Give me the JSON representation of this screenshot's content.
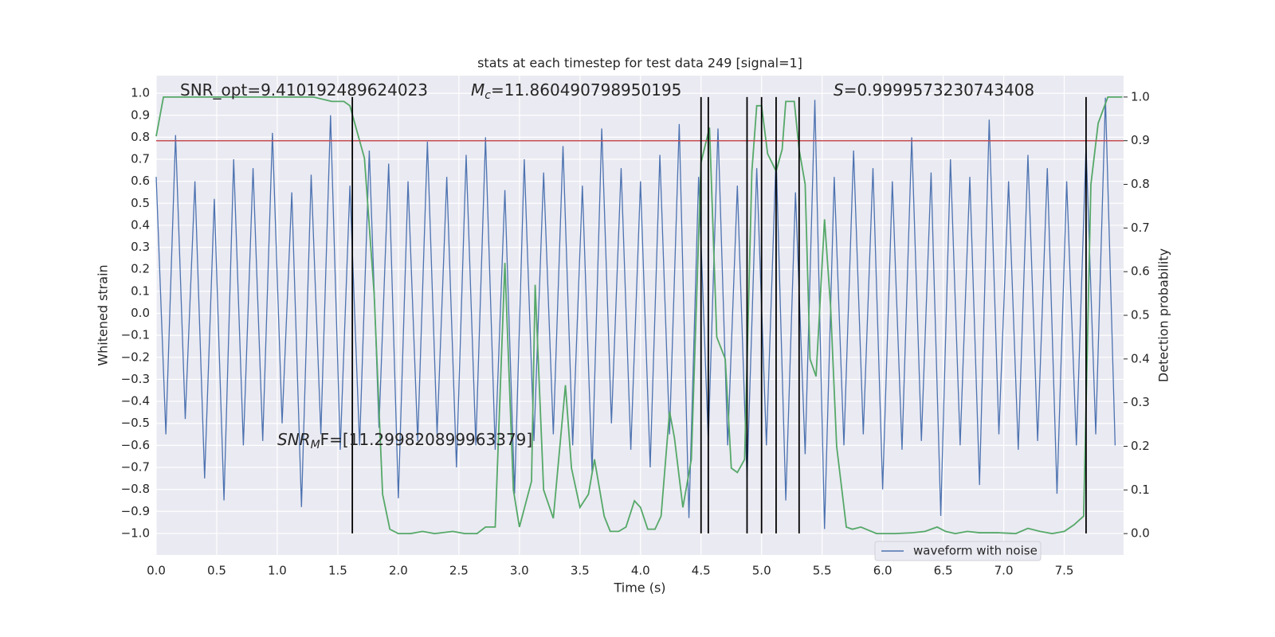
{
  "chart_data": {
    "type": "line",
    "title": "stats at each timestep for test data 249 [signal=1]",
    "xlabel": "Time (s)",
    "ylabel": "Whitened strain",
    "y2label": "Detection probability",
    "xlim": [
      0,
      7.99
    ],
    "xticks": [
      {
        "value": 0,
        "label": "0.0"
      },
      {
        "value": 0.5,
        "label": "0.5"
      },
      {
        "value": 1,
        "label": "1.0"
      },
      {
        "value": 1.5,
        "label": "1.5"
      },
      {
        "value": 2,
        "label": "2.0"
      },
      {
        "value": 2.5,
        "label": "2.5"
      },
      {
        "value": 3,
        "label": "3.0"
      },
      {
        "value": 3.5,
        "label": "3.5"
      },
      {
        "value": 4,
        "label": "4.0"
      },
      {
        "value": 4.5,
        "label": "4.5"
      },
      {
        "value": 5,
        "label": "5.0"
      },
      {
        "value": 5.5,
        "label": "5.5"
      },
      {
        "value": 6,
        "label": "6.0"
      },
      {
        "value": 6.5,
        "label": "6.5"
      },
      {
        "value": 7,
        "label": "7.0"
      },
      {
        "value": 7.5,
        "label": "7.5"
      }
    ],
    "ylim": [
      -1.098,
      1.08
    ],
    "yticks": [
      {
        "value": -1,
        "label": "−1.0"
      },
      {
        "value": -0.9,
        "label": "−0.9"
      },
      {
        "value": -0.8,
        "label": "−0.8"
      },
      {
        "value": -0.7,
        "label": "−0.7"
      },
      {
        "value": -0.6,
        "label": "−0.6"
      },
      {
        "value": -0.5,
        "label": "−0.5"
      },
      {
        "value": -0.4,
        "label": "−0.4"
      },
      {
        "value": -0.3,
        "label": "−0.3"
      },
      {
        "value": -0.2,
        "label": "−0.2"
      },
      {
        "value": -0.1,
        "label": "−0.1"
      },
      {
        "value": 0,
        "label": "0.0"
      },
      {
        "value": 0.1,
        "label": "0.1"
      },
      {
        "value": 0.2,
        "label": "0.2"
      },
      {
        "value": 0.3,
        "label": "0.3"
      },
      {
        "value": 0.4,
        "label": "0.4"
      },
      {
        "value": 0.5,
        "label": "0.5"
      },
      {
        "value": 0.6,
        "label": "0.6"
      },
      {
        "value": 0.7,
        "label": "0.7"
      },
      {
        "value": 0.8,
        "label": "0.8"
      },
      {
        "value": 0.9,
        "label": "0.9"
      },
      {
        "value": 1,
        "label": "1.0"
      }
    ],
    "y2lim": [
      -0.049,
      1.049
    ],
    "y2ticks": [
      {
        "value": 0,
        "label": "0.0"
      },
      {
        "value": 0.1,
        "label": "0.1"
      },
      {
        "value": 0.2,
        "label": "0.2"
      },
      {
        "value": 0.3,
        "label": "0.3"
      },
      {
        "value": 0.4,
        "label": "0.4"
      },
      {
        "value": 0.5,
        "label": "0.5"
      },
      {
        "value": 0.6,
        "label": "0.6"
      },
      {
        "value": 0.7,
        "label": "0.7"
      },
      {
        "value": 0.8,
        "label": "0.8"
      },
      {
        "value": 0.9,
        "label": "0.9"
      },
      {
        "value": 1,
        "label": "1.0"
      }
    ],
    "grid": true,
    "legend": "lower right",
    "series": [
      {
        "name": "waveform with noise",
        "color": "#4c72b0",
        "x": [
          0,
          0.08,
          0.16,
          0.24,
          0.32,
          0.4,
          0.48,
          0.56,
          0.64,
          0.72,
          0.8,
          0.88,
          0.96,
          1.04,
          1.12,
          1.2,
          1.28,
          1.36,
          1.44,
          1.52,
          1.6,
          1.68,
          1.76,
          1.84,
          1.92,
          2,
          2.08,
          2.16,
          2.24,
          2.32,
          2.4,
          2.48,
          2.56,
          2.64,
          2.72,
          2.8,
          2.88,
          2.96,
          3.04,
          3.12,
          3.2,
          3.28,
          3.36,
          3.44,
          3.52,
          3.6,
          3.68,
          3.76,
          3.84,
          3.92,
          4,
          4.08,
          4.16,
          4.24,
          4.32,
          4.4,
          4.48,
          4.56,
          4.64,
          4.72,
          4.8,
          4.88,
          4.96,
          5.04,
          5.12,
          5.2,
          5.28,
          5.36,
          5.44,
          5.52,
          5.6,
          5.68,
          5.76,
          5.84,
          5.92,
          6,
          6.08,
          6.16,
          6.24,
          6.32,
          6.4,
          6.48,
          6.56,
          6.64,
          6.72,
          6.8,
          6.88,
          6.96,
          7.04,
          7.12,
          7.2,
          7.28,
          7.36,
          7.44,
          7.52,
          7.6,
          7.68,
          7.76,
          7.84,
          7.92
        ],
        "values": [
          0.62,
          -0.55,
          0.81,
          -0.48,
          0.6,
          -0.75,
          0.52,
          -0.85,
          0.7,
          -0.6,
          0.66,
          -0.58,
          0.82,
          -0.5,
          0.55,
          -0.88,
          0.63,
          -0.55,
          0.9,
          -0.62,
          0.58,
          -0.6,
          0.74,
          -0.52,
          0.68,
          -0.84,
          0.6,
          -0.58,
          0.78,
          -0.55,
          0.62,
          -0.7,
          0.72,
          -0.6,
          0.8,
          -0.62,
          0.56,
          -0.82,
          0.7,
          -0.58,
          0.64,
          -0.55,
          0.76,
          -0.6,
          0.58,
          -0.72,
          0.84,
          -0.5,
          0.66,
          -0.62,
          0.6,
          -0.7,
          0.72,
          -0.55,
          0.86,
          -0.93,
          0.62,
          -0.58,
          0.84,
          -0.6,
          0.58,
          -0.75,
          0.66,
          -0.6,
          0.72,
          -0.85,
          0.55,
          -0.64,
          0.97,
          -0.98,
          0.62,
          -0.6,
          0.74,
          -0.55,
          0.66,
          -0.8,
          0.6,
          -0.62,
          0.8,
          -0.58,
          0.64,
          -0.92,
          0.7,
          -0.6,
          0.62,
          -0.78,
          0.88,
          -0.55,
          0.6,
          -0.62,
          0.72,
          -0.58,
          0.66,
          -0.82,
          0.6,
          -0.6,
          0.76,
          -0.55,
          0.98,
          -0.6
        ]
      },
      {
        "color": "#55a868",
        "axis": "y2",
        "x": [
          0,
          0.06,
          0.5,
          1.3,
          1.45,
          1.55,
          1.6,
          1.65,
          1.72,
          1.8,
          1.87,
          1.93,
          2,
          2.1,
          2.2,
          2.3,
          2.45,
          2.55,
          2.65,
          2.72,
          2.8,
          2.88,
          2.95,
          3,
          3.1,
          3.13,
          3.2,
          3.28,
          3.38,
          3.43,
          3.5,
          3.57,
          3.62,
          3.7,
          3.75,
          3.82,
          3.88,
          3.95,
          4,
          4.06,
          4.12,
          4.17,
          4.24,
          4.28,
          4.35,
          4.42,
          4.5,
          4.57,
          4.63,
          4.7,
          4.75,
          4.8,
          4.86,
          4.92,
          4.96,
          5,
          5.05,
          5.12,
          5.17,
          5.2,
          5.27,
          5.31,
          5.36,
          5.4,
          5.45,
          5.52,
          5.57,
          5.62,
          5.7,
          5.75,
          5.82,
          5.95,
          6.1,
          6.25,
          6.35,
          6.45,
          6.52,
          6.6,
          6.7,
          6.8,
          6.95,
          7.1,
          7.2,
          7.3,
          7.4,
          7.5,
          7.58,
          7.66,
          7.72,
          7.78,
          7.86,
          7.98
        ],
        "values": [
          0.91,
          1,
          1,
          1,
          0.99,
          0.99,
          0.98,
          0.93,
          0.86,
          0.55,
          0.09,
          0.01,
          0,
          0,
          0.005,
          0,
          0.005,
          0,
          0,
          0.015,
          0.015,
          0.62,
          0.1,
          0.015,
          0.12,
          0.57,
          0.1,
          0.035,
          0.34,
          0.15,
          0.06,
          0.09,
          0.17,
          0.04,
          0.005,
          0.005,
          0.015,
          0.075,
          0.06,
          0.01,
          0.01,
          0.04,
          0.28,
          0.22,
          0.06,
          0.17,
          0.85,
          0.93,
          0.45,
          0.4,
          0.15,
          0.14,
          0.17,
          0.83,
          0.98,
          0.98,
          0.87,
          0.83,
          0.88,
          0.99,
          0.99,
          0.88,
          0.8,
          0.4,
          0.36,
          0.72,
          0.52,
          0.2,
          0.015,
          0.01,
          0.015,
          0,
          0,
          0.002,
          0.005,
          0.015,
          0.005,
          0,
          0.005,
          0.002,
          0.002,
          0,
          0.012,
          0.005,
          0,
          0.005,
          0.02,
          0.04,
          0.8,
          0.94,
          1,
          1
        ]
      }
    ],
    "threshold": {
      "value": 0.9,
      "axis": "y2",
      "color": "#c44e52"
    },
    "vlines": {
      "x": [
        1.62,
        4.5,
        4.56,
        4.88,
        5.0,
        5.12,
        5.31,
        7.68
      ],
      "color": "#000000"
    },
    "annotations": [
      {
        "parts": [
          {
            "text": "SNR_opt=9.410192489624023"
          }
        ]
      },
      {
        "parts": [
          {
            "text": "M",
            "style": "italic"
          },
          {
            "text": "c",
            "style": "sub"
          },
          {
            "text": "=11.860490798950195"
          }
        ]
      },
      {
        "parts": [
          {
            "text": "S",
            "style": "italic"
          },
          {
            "text": "=0.9999573230743408"
          }
        ]
      },
      {
        "parts": [
          {
            "text": "SNR",
            "style": "italic"
          },
          {
            "text": "M",
            "style": "sub"
          },
          {
            "text": "F=[11.299820899963379]"
          }
        ]
      }
    ]
  }
}
